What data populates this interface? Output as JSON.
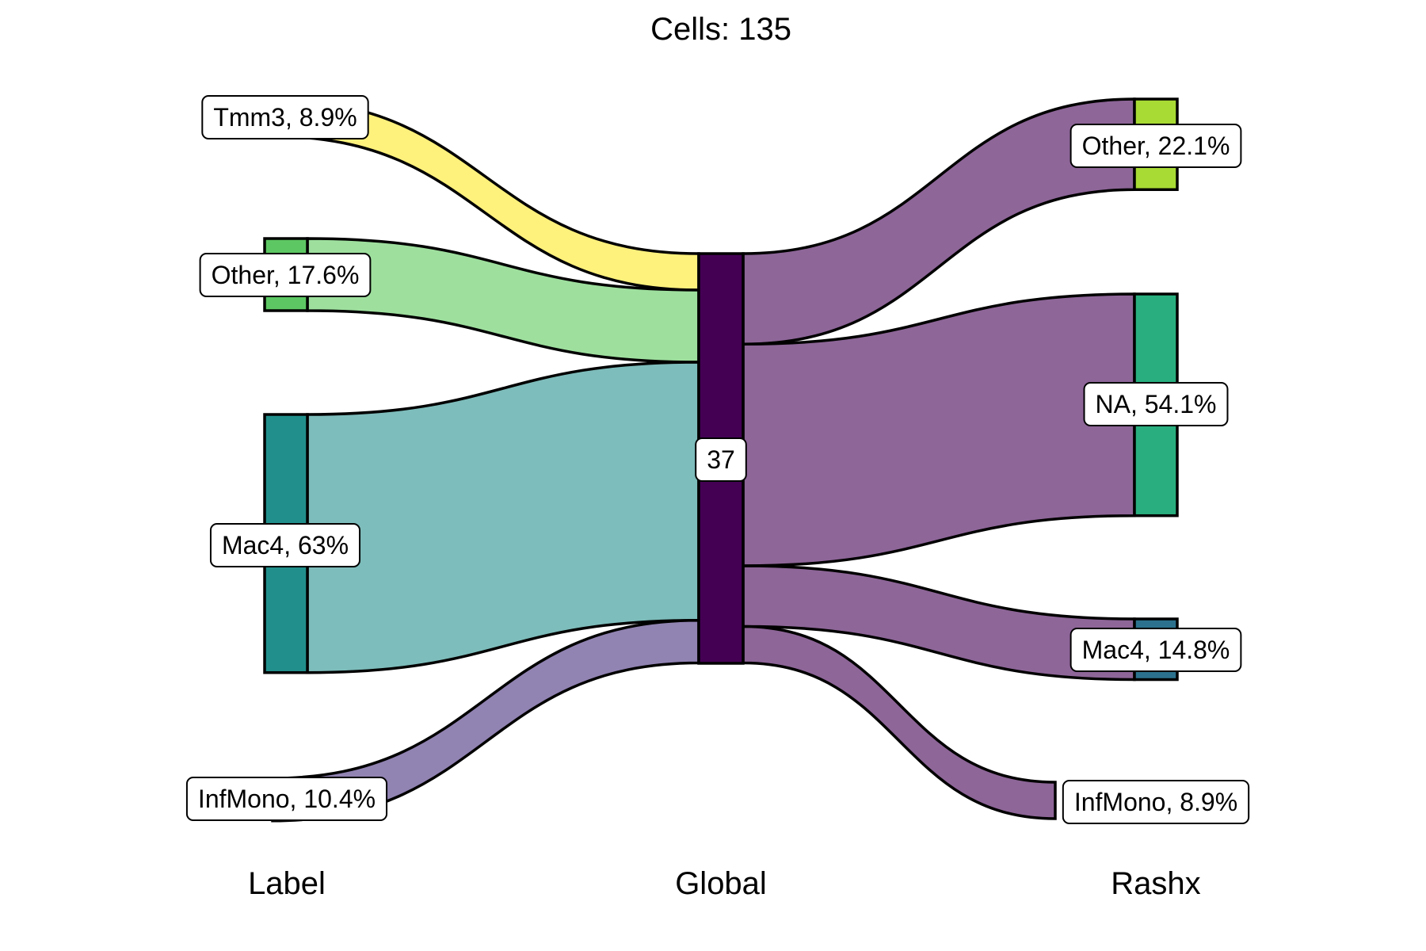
{
  "title": "Cells:  135",
  "chart_data": {
    "type": "sankey",
    "total_cells": 135,
    "axes": [
      "Label",
      "Global",
      "Rashx"
    ],
    "center": {
      "name": "37",
      "color": "#440154"
    },
    "left_nodes": [
      {
        "name": "Tmm3",
        "label": "Tmm3, 8.9%",
        "percent": 8.9,
        "color": "#FDE725",
        "flow_color": "#FEF17C"
      },
      {
        "name": "Other",
        "label": "Other, 17.6%",
        "percent": 17.6,
        "color": "#5DC863",
        "flow_color": "#9EDF9E"
      },
      {
        "name": "Mac4",
        "label": "Mac4, 63%",
        "percent": 63.0,
        "color": "#21908C",
        "flow_color": "#7DBDBB"
      },
      {
        "name": "InfMono",
        "label": "InfMono, 10.4%",
        "percent": 10.4,
        "color": "#8E85B2",
        "flow_color": "#9183B2"
      }
    ],
    "right_nodes": [
      {
        "name": "Other",
        "label": "Other, 22.1%",
        "percent": 22.1,
        "color": "#A8DB34"
      },
      {
        "name": "NA",
        "label": "NA, 54.1%",
        "percent": 54.1,
        "color": "#29AF7F"
      },
      {
        "name": "Mac4",
        "label": "Mac4, 14.8%",
        "percent": 14.8,
        "color": "#2C728E"
      },
      {
        "name": "InfMono",
        "label": "InfMono, 8.9%",
        "percent": 8.9,
        "color": "#8E6698"
      }
    ],
    "right_flow_color": "#8E6698"
  }
}
